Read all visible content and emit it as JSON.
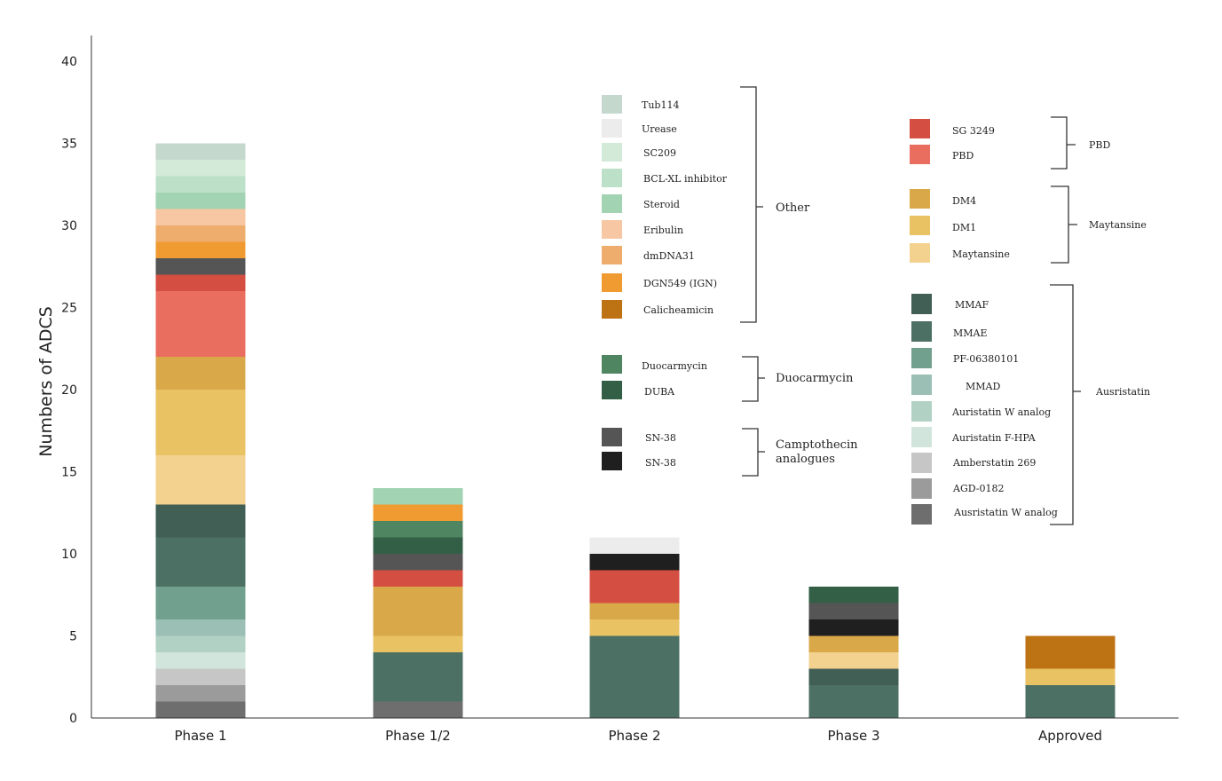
{
  "chart_data": {
    "type": "bar",
    "stacked": true,
    "ylabel": "Numbers of ADCS",
    "xlabel": "",
    "ylim": [
      0,
      40
    ],
    "yticks": [
      0,
      5,
      10,
      15,
      20,
      25,
      30,
      35,
      40
    ],
    "grid": false,
    "categories": [
      "Phase 1",
      "Phase 1/2",
      "Phase 2",
      "Phase 3",
      "Approved"
    ],
    "series": [
      {
        "name": "Ausristatin W analog",
        "color": "#6e6e6e",
        "values": [
          1,
          1,
          0,
          0,
          0
        ]
      },
      {
        "name": "AGD-0182",
        "color": "#9b9b9b",
        "values": [
          1,
          0,
          0,
          0,
          0
        ]
      },
      {
        "name": "Amberstatin 269",
        "color": "#c6c6c6",
        "values": [
          1,
          0,
          0,
          0,
          0
        ]
      },
      {
        "name": "Auristatin F-HPA",
        "color": "#d2e5dc",
        "values": [
          1,
          0,
          0,
          0,
          0
        ]
      },
      {
        "name": "Auristatin W analog",
        "color": "#b2d1c5",
        "values": [
          1,
          0,
          0,
          0,
          0
        ]
      },
      {
        "name": "MMAD",
        "color": "#9bbfb5",
        "values": [
          1,
          0,
          0,
          0,
          0
        ]
      },
      {
        "name": "PF-06380101",
        "color": "#72a08e",
        "values": [
          2,
          0,
          0,
          0,
          0
        ]
      },
      {
        "name": "MMAE",
        "color": "#4d7065",
        "values": [
          3,
          3,
          5,
          2,
          2
        ]
      },
      {
        "name": "MMAF",
        "color": "#425f56",
        "values": [
          2,
          0,
          0,
          1,
          0
        ]
      },
      {
        "name": "Maytansine",
        "color": "#f3d28f",
        "values": [
          3,
          0,
          0,
          1,
          0
        ]
      },
      {
        "name": "DM1",
        "color": "#e9c263",
        "values": [
          4,
          1,
          1,
          0,
          1
        ]
      },
      {
        "name": "DM4",
        "color": "#d8a849",
        "values": [
          2,
          3,
          1,
          1,
          0
        ]
      },
      {
        "name": "PBD",
        "color": "#ea6e5f",
        "values": [
          4,
          0,
          0,
          0,
          0
        ]
      },
      {
        "name": "SG 3249",
        "color": "#d44e42",
        "values": [
          1,
          1,
          2,
          0,
          0
        ]
      },
      {
        "name": "SN-38",
        "color": "#1f1f1f",
        "values": [
          0,
          0,
          1,
          1,
          0
        ]
      },
      {
        "name": "SN-38",
        "color": "#555555",
        "values": [
          1,
          1,
          0,
          1,
          0
        ]
      },
      {
        "name": "DUBA",
        "color": "#325f45",
        "values": [
          0,
          1,
          0,
          1,
          0
        ]
      },
      {
        "name": "Duocarmycin",
        "color": "#4f8561",
        "values": [
          0,
          1,
          0,
          0,
          0
        ]
      },
      {
        "name": "Calicheamicin",
        "color": "#bd7214",
        "values": [
          0,
          0,
          0,
          0,
          2
        ]
      },
      {
        "name": "DGN549 (IGN)",
        "color": "#f09b32",
        "values": [
          1,
          1,
          0,
          0,
          0
        ]
      },
      {
        "name": "dmDNA31",
        "color": "#eead6d",
        "values": [
          1,
          0,
          0,
          0,
          0
        ]
      },
      {
        "name": "Eribulin",
        "color": "#f7c7a3",
        "values": [
          1,
          0,
          0,
          0,
          0
        ]
      },
      {
        "name": "Steroid",
        "color": "#a2d3b2",
        "values": [
          1,
          1,
          0,
          0,
          0
        ]
      },
      {
        "name": "BCL-XL inhibitor",
        "color": "#bde0c9",
        "values": [
          1,
          0,
          0,
          0,
          0
        ]
      },
      {
        "name": "SC209",
        "color": "#d3ead9",
        "values": [
          1,
          0,
          0,
          0,
          0
        ]
      },
      {
        "name": "Urease",
        "color": "#ececec",
        "values": [
          0,
          0,
          1,
          0,
          0
        ]
      },
      {
        "name": "Tub114",
        "color": "#c5d8cd",
        "values": [
          1,
          0,
          0,
          0,
          0
        ]
      }
    ],
    "legend_groups": [
      {
        "label": "Other",
        "items": [
          "Tub114",
          "Urease",
          "SC209",
          "BCL-XL inhibitor",
          "Steroid",
          "Eribulin",
          "dmDNA31",
          "DGN549 (IGN)",
          "Calicheamicin"
        ]
      },
      {
        "label": "Duocarmycin",
        "items": [
          "Duocarmycin",
          "DUBA"
        ]
      },
      {
        "label": "Camptothecin\nanalogues",
        "items": [
          "SN-38",
          "SN-38"
        ]
      },
      {
        "label": "PBD",
        "items": [
          "SG 3249",
          "PBD"
        ]
      },
      {
        "label": "Maytansine",
        "items": [
          "DM4",
          "DM1",
          "Maytansine"
        ]
      },
      {
        "label": "Ausristatin",
        "items": [
          "MMAF",
          "MMAE",
          "PF-06380101",
          "MMAD",
          "Auristatin W analog",
          "Auristatin F-HPA",
          "Amberstatin 269",
          "AGD-0182",
          "Ausristatin W analog"
        ]
      }
    ]
  },
  "legend": {
    "tub114": {
      "label": "Tub114",
      "color": "#c5d8cd"
    },
    "urease": {
      "label": "Urease",
      "color": "#ececec"
    },
    "sc209": {
      "label": "SC209",
      "color": "#d3ead9"
    },
    "bclxl": {
      "label": "BCL-XL inhibitor",
      "color": "#bde0c9"
    },
    "steroid": {
      "label": "Steroid",
      "color": "#a2d3b2"
    },
    "eribulin": {
      "label": "Eribulin",
      "color": "#f7c7a3"
    },
    "dmdna31": {
      "label": "dmDNA31",
      "color": "#eead6d"
    },
    "dgn549": {
      "label": "DGN549 (IGN)",
      "color": "#f09b32"
    },
    "calicheamicin": {
      "label": "Calicheamicin",
      "color": "#bd7214"
    },
    "duocarmycin": {
      "label": "Duocarmycin",
      "color": "#4f8561"
    },
    "duba": {
      "label": "DUBA",
      "color": "#325f45"
    },
    "sn38a": {
      "label": "SN-38",
      "color": "#555555"
    },
    "sn38b": {
      "label": "SN-38",
      "color": "#1f1f1f"
    },
    "sg3249": {
      "label": "SG 3249",
      "color": "#d44e42"
    },
    "pbd": {
      "label": "PBD",
      "color": "#ea6e5f"
    },
    "dm4": {
      "label": "DM4",
      "color": "#d8a849"
    },
    "dm1": {
      "label": "DM1",
      "color": "#e9c263"
    },
    "maytansine": {
      "label": "Maytansine",
      "color": "#f3d28f"
    },
    "mmaf": {
      "label": "MMAF",
      "color": "#425f56"
    },
    "mmae": {
      "label": "MMAE",
      "color": "#4d7065"
    },
    "pf06380101": {
      "label": "PF-06380101",
      "color": "#72a08e"
    },
    "mmad": {
      "label": "MMAD",
      "color": "#9bbfb5"
    },
    "auristatinw": {
      "label": "Auristatin W analog",
      "color": "#b2d1c5"
    },
    "auristatinf": {
      "label": "Auristatin F-HPA",
      "color": "#d2e5dc"
    },
    "amberstatin": {
      "label": "Amberstatin 269",
      "color": "#c6c6c6"
    },
    "agd0182": {
      "label": "AGD-0182",
      "color": "#9b9b9b"
    },
    "ausristatinw": {
      "label": "Ausristatin W analog",
      "color": "#6e6e6e"
    }
  },
  "groups": {
    "other": "Other",
    "duocarmycin": "Duocarmycin",
    "camptothecin_line1": "Camptothecin",
    "camptothecin_line2": "analogues",
    "pbd": "PBD",
    "maytansine": "Maytansine",
    "ausristatin": "Ausristatin"
  }
}
